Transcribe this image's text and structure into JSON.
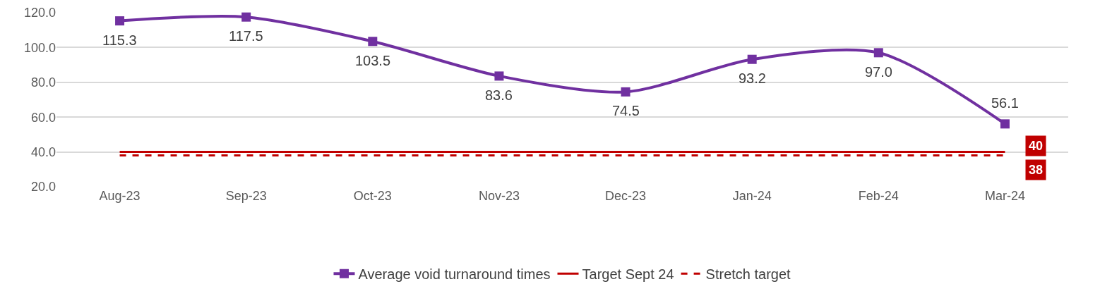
{
  "chart_data": {
    "type": "line",
    "categories": [
      "Aug-23",
      "Sep-23",
      "Oct-23",
      "Nov-23",
      "Dec-23",
      "Jan-24",
      "Feb-24",
      "Mar-24"
    ],
    "series": [
      {
        "name": "Average void turnaround times",
        "color": "#7030a0",
        "marker": "square",
        "line_style": "solid",
        "values": [
          115.3,
          117.5,
          103.5,
          83.6,
          74.5,
          93.2,
          97.0,
          56.1
        ],
        "value_labels": [
          "115.3",
          "117.5",
          "103.5",
          "83.6",
          "74.5",
          "93.2",
          "97.0",
          "56.1"
        ]
      },
      {
        "name": "Target Sept 24",
        "color": "#c00000",
        "marker": "none",
        "line_style": "solid",
        "values": [
          40,
          40,
          40,
          40,
          40,
          40,
          40,
          40
        ],
        "value_labels": [
          null,
          null,
          null,
          null,
          null,
          null,
          null,
          "40"
        ]
      },
      {
        "name": "Stretch target",
        "color": "#c00000",
        "marker": "none",
        "line_style": "dashed",
        "values": [
          38,
          38,
          38,
          38,
          38,
          38,
          38,
          38
        ],
        "value_labels": [
          null,
          null,
          null,
          null,
          null,
          null,
          null,
          "38"
        ]
      }
    ],
    "ylim": [
      20,
      120
    ],
    "yticks": [
      {
        "value": 20,
        "label": "20.0"
      },
      {
        "value": 40,
        "label": "40.0"
      },
      {
        "value": 60,
        "label": "60.0"
      },
      {
        "value": 80,
        "label": "80.0"
      },
      {
        "value": 100,
        "label": "100.0"
      },
      {
        "value": 120,
        "label": "120.0"
      }
    ],
    "grid": "y",
    "legend": "bottom"
  }
}
